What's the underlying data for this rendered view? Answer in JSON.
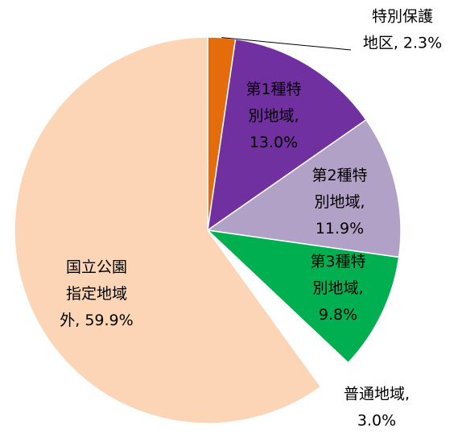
{
  "chart_data": {
    "type": "pie",
    "start_angle_deg": 0,
    "direction": "clockwise",
    "slices": [
      {
        "label_lines": [
          "特別保護",
          "地区, 2.3%"
        ],
        "value": 2.3,
        "color": "#E46C0A"
      },
      {
        "label_lines": [
          "第1種特",
          "別地域,",
          "13.0%"
        ],
        "value": 13.0,
        "color": "#7030A0"
      },
      {
        "label_lines": [
          "第2種特",
          "別地域,",
          "11.9%"
        ],
        "value": 11.9,
        "color": "#B2A1C7"
      },
      {
        "label_lines": [
          "第3種特",
          "別地域,",
          "9.8%"
        ],
        "value": 9.8,
        "color": "#00B050"
      },
      {
        "label_lines": [
          "普通地域,",
          "3.0%"
        ],
        "value": 3.0,
        "color": "#FFFFFF"
      },
      {
        "label_lines": [
          "国立公園",
          "指定地域",
          "外, 59.9%"
        ],
        "value": 59.9,
        "color": "#FBD5B5"
      }
    ]
  }
}
